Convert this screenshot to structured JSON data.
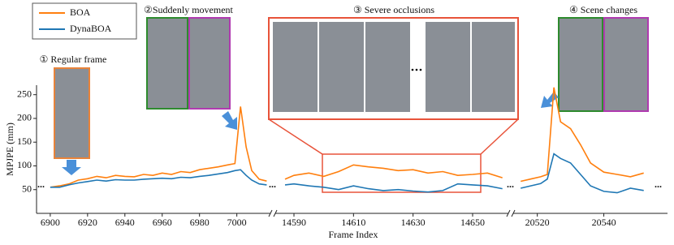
{
  "chart_data": [
    {
      "type": "line",
      "x_label": "Frame Index",
      "y_label": "MPJPE (mm)",
      "x": [
        6900,
        6905,
        6910,
        6915,
        6920,
        6925,
        6930,
        6935,
        6940,
        6945,
        6950,
        6955,
        6960,
        6965,
        6970,
        6975,
        6980,
        6985,
        6990,
        6995,
        6999,
        7002,
        7005,
        7008,
        7012,
        7016
      ],
      "series": [
        {
          "name": "BOA",
          "color": "#ff7f0e",
          "values": [
            55,
            58,
            62,
            70,
            73,
            78,
            75,
            80,
            78,
            77,
            82,
            80,
            85,
            82,
            88,
            86,
            92,
            95,
            98,
            102,
            105,
            225,
            140,
            90,
            72,
            68
          ]
        },
        {
          "name": "DynaBOA",
          "color": "#1f77b4",
          "values": [
            55,
            55,
            60,
            64,
            67,
            70,
            68,
            71,
            70,
            70,
            72,
            73,
            74,
            73,
            76,
            75,
            78,
            80,
            83,
            86,
            90,
            92,
            80,
            70,
            62,
            60
          ]
        }
      ],
      "xlim": [
        6897,
        7018
      ],
      "xticks": [
        6900,
        6920,
        6940,
        6960,
        6980,
        7000
      ],
      "ylim": [
        0,
        270
      ],
      "yticks": [
        50,
        100,
        150,
        200,
        250
      ]
    },
    {
      "type": "line",
      "x": [
        14587,
        14590,
        14595,
        14600,
        14605,
        14610,
        14615,
        14620,
        14625,
        14630,
        14635,
        14640,
        14645,
        14650,
        14655,
        14660
      ],
      "series": [
        {
          "name": "BOA",
          "color": "#ff7f0e",
          "values": [
            72,
            80,
            85,
            78,
            88,
            102,
            98,
            95,
            90,
            92,
            85,
            88,
            80,
            82,
            85,
            75
          ]
        },
        {
          "name": "DynaBOA",
          "color": "#1f77b4",
          "values": [
            60,
            62,
            58,
            55,
            50,
            58,
            52,
            48,
            50,
            47,
            45,
            48,
            62,
            60,
            58,
            52
          ]
        }
      ],
      "xlim": [
        14584,
        14662
      ],
      "xticks": [
        14590,
        14610,
        14630,
        14650
      ],
      "ylim": [
        0,
        270
      ]
    },
    {
      "type": "line",
      "x": [
        20515,
        20518,
        20521,
        20523,
        20525,
        20527,
        20530,
        20533,
        20536,
        20540,
        20544,
        20548,
        20552
      ],
      "series": [
        {
          "name": "BOA",
          "color": "#ff7f0e",
          "values": [
            70,
            75,
            80,
            85,
            275,
            200,
            185,
            150,
            110,
            90,
            85,
            80,
            88
          ]
        },
        {
          "name": "DynaBOA",
          "color": "#1f77b4",
          "values": [
            55,
            60,
            65,
            75,
            130,
            120,
            110,
            85,
            60,
            48,
            45,
            55,
            50
          ]
        }
      ],
      "xlim": [
        20513,
        20555
      ],
      "xticks": [
        20520,
        20540
      ],
      "ylim": [
        0,
        280
      ]
    }
  ],
  "annotations": [
    "① Regular frame",
    "②Suddenly movement",
    "③ Severe occlusions",
    "④ Scene changes"
  ]
}
